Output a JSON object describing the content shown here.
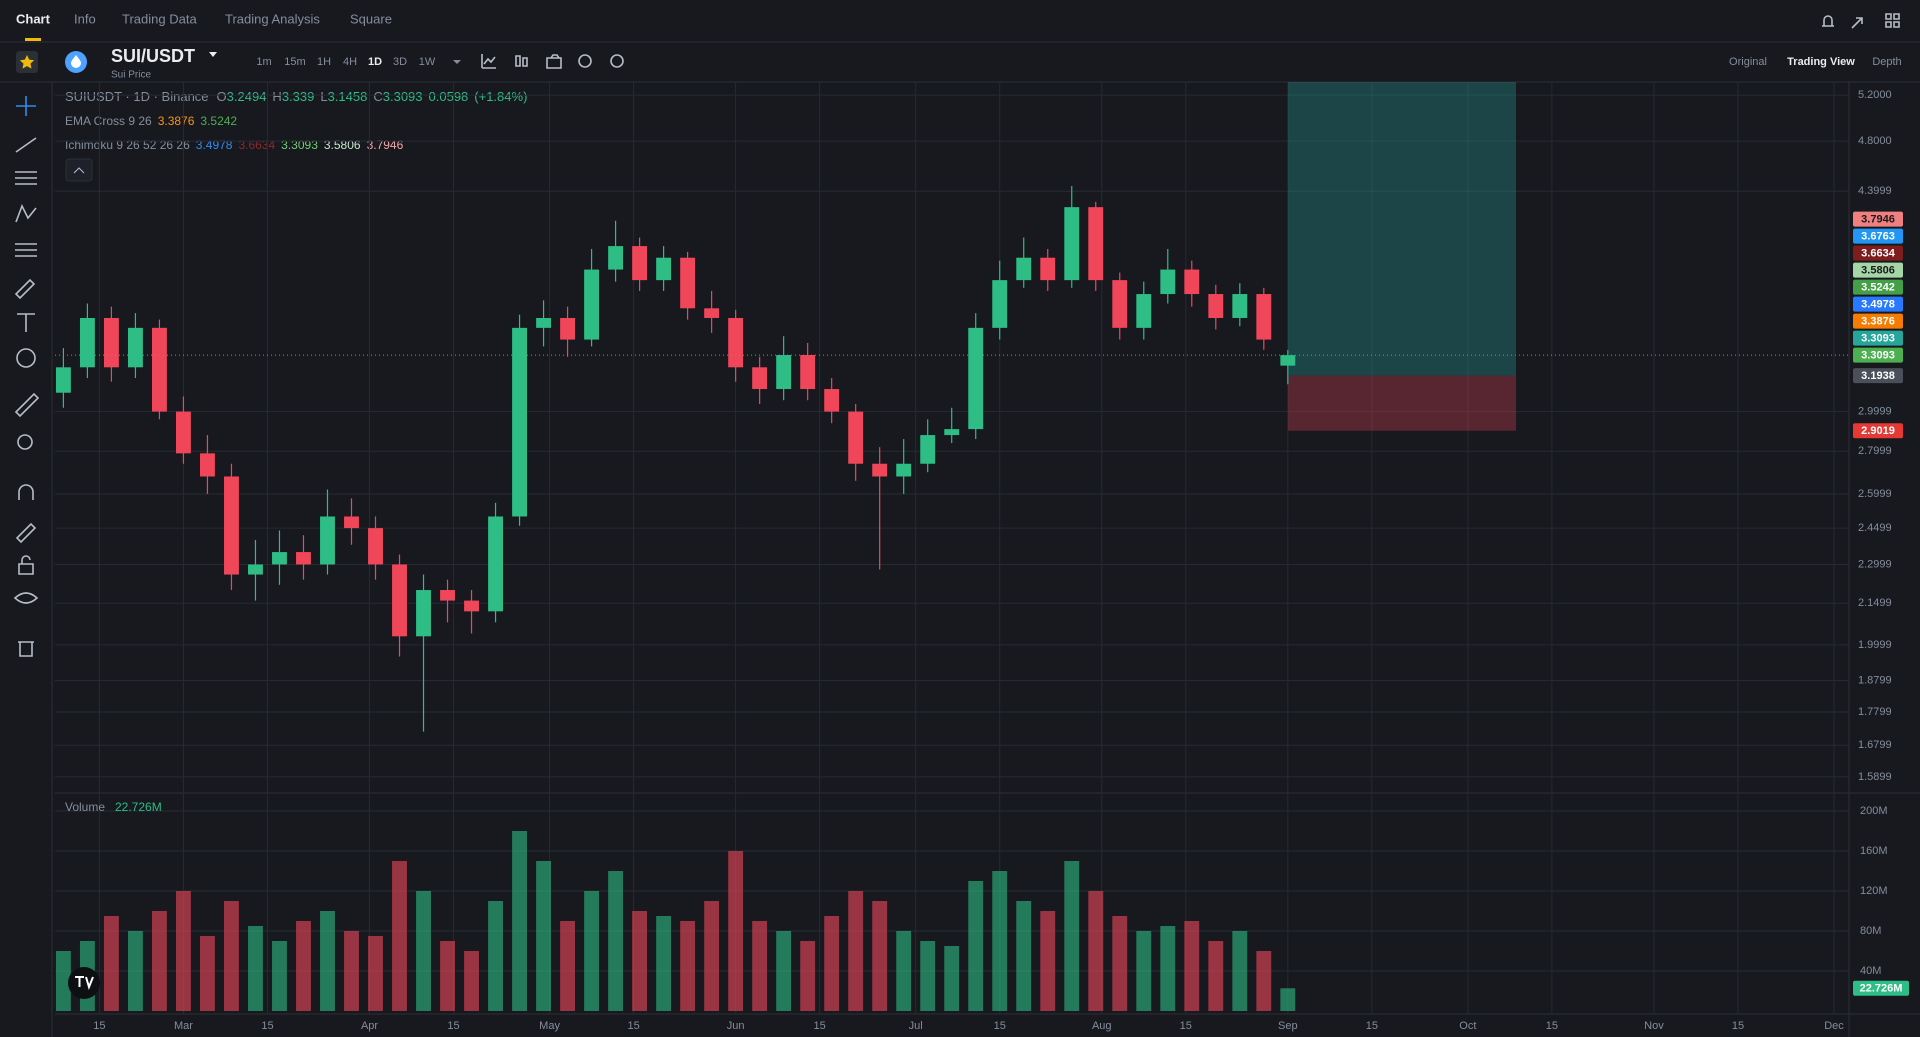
{
  "tabs": [
    "Chart",
    "Info",
    "Trading Data",
    "Trading Analysis",
    "Square"
  ],
  "symbol": "SUI/USDT",
  "symbol_subtitle": "Sui Price",
  "intervals": [
    "1m",
    "15m",
    "1H",
    "4H",
    "1D",
    "3D",
    "1W"
  ],
  "views": [
    "Original",
    "Trading View",
    "Depth"
  ],
  "legend": {
    "title": "SUIUSDT · 1D · Binance",
    "ohlc": [
      {
        "prefix": "O",
        "value": 3.2494
      },
      {
        "prefix": "H",
        "value": 3.339
      },
      {
        "prefix": "L",
        "value": 3.1458
      },
      {
        "prefix": "C",
        "value": 3.3093
      }
    ],
    "change": 0.0598,
    "change_pct": "(+1.84%)",
    "ema": {
      "name": "EMA Cross 9 26",
      "values": [
        {
          "value": 3.3876,
          "color": "#f7931a"
        },
        {
          "value": 3.5242,
          "color": "#4caf50"
        }
      ]
    },
    "ichimoku": {
      "name": "Ichimoku 9 26 52 26 26",
      "values": [
        {
          "value": 3.4978,
          "color": "#2f8cf0"
        },
        {
          "value": 3.6634,
          "color": "#8b2a2a"
        },
        {
          "value": 3.3093,
          "color": "#6fcf6f"
        },
        {
          "value": 3.5806,
          "color": "#c8e6c9"
        },
        {
          "value": 3.7946,
          "color": "#f4a6a6"
        }
      ]
    }
  },
  "chart_data": [
    {
      "type": "candlestick",
      "log_scale": true,
      "grid": true,
      "up_color": "#2dbd85",
      "down_color": "#f0465a",
      "xlim": [
        38.6,
        337.5
      ],
      "ylim": [
        1.546,
        5.32
      ],
      "xticks": [
        {
          "value": 46,
          "label": "15"
        },
        {
          "value": 60,
          "label": "Mar"
        },
        {
          "value": 74,
          "label": "15"
        },
        {
          "value": 91,
          "label": "Apr"
        },
        {
          "value": 105,
          "label": "15"
        },
        {
          "value": 121,
          "label": "May"
        },
        {
          "value": 135,
          "label": "15"
        },
        {
          "value": 152,
          "label": "Jun"
        },
        {
          "value": 166,
          "label": "15"
        },
        {
          "value": 182,
          "label": "Jul"
        },
        {
          "value": 196,
          "label": "15"
        },
        {
          "value": 213,
          "label": "Aug"
        },
        {
          "value": 227,
          "label": "15"
        },
        {
          "value": 244,
          "label": "Sep"
        },
        {
          "value": 258,
          "label": "15"
        },
        {
          "value": 274,
          "label": "Oct"
        },
        {
          "value": 288,
          "label": "15"
        },
        {
          "value": 305,
          "label": "Nov"
        },
        {
          "value": 319,
          "label": "15"
        },
        {
          "value": 335,
          "label": "Dec"
        }
      ],
      "yticks": [
        {
          "value": 5.2,
          "label": "5.2000"
        },
        {
          "value": 4.8,
          "label": "4.8000"
        },
        4.3999,
        2.9999,
        2.7999,
        2.5999,
        2.4499,
        2.2999,
        2.1499,
        1.9999,
        1.8799,
        1.7799,
        1.6799,
        1.5899
      ],
      "x": [
        40,
        44,
        48,
        52,
        56,
        60,
        64,
        68,
        72,
        76,
        80,
        84,
        88,
        92,
        96,
        100,
        104,
        108,
        112,
        116,
        120,
        124,
        128,
        132,
        136,
        140,
        144,
        148,
        152,
        156,
        160,
        164,
        168,
        172,
        176,
        180,
        184,
        188,
        192,
        196,
        200,
        204,
        208,
        212,
        216,
        220,
        224,
        228,
        232,
        236,
        240,
        244
      ],
      "open": [
        3.1,
        3.24,
        3.53,
        3.24,
        3.47,
        3.0,
        2.79,
        2.68,
        2.26,
        2.3,
        2.35,
        2.3,
        2.5,
        2.45,
        2.3,
        2.03,
        2.2,
        2.16,
        2.12,
        2.5,
        3.47,
        3.53,
        3.4,
        3.84,
        4.0,
        3.77,
        3.92,
        3.59,
        3.53,
        3.24,
        3.12,
        3.31,
        3.12,
        3.0,
        2.74,
        2.68,
        2.74,
        2.88,
        2.91,
        3.47,
        3.77,
        3.92,
        3.77,
        4.28,
        3.77,
        3.47,
        3.68,
        3.84,
        3.68,
        3.53,
        3.68,
        3.2494
      ],
      "high": [
        3.35,
        3.62,
        3.6,
        3.56,
        3.52,
        3.08,
        2.88,
        2.74,
        2.4,
        2.44,
        2.42,
        2.62,
        2.58,
        2.5,
        2.34,
        2.26,
        2.24,
        2.2,
        2.56,
        3.55,
        3.64,
        3.6,
        3.98,
        4.18,
        4.06,
        4.0,
        3.96,
        3.7,
        3.58,
        3.3,
        3.42,
        3.38,
        3.18,
        3.04,
        2.82,
        2.86,
        2.96,
        3.02,
        3.56,
        3.9,
        4.06,
        3.98,
        4.44,
        4.32,
        3.82,
        3.76,
        3.98,
        3.9,
        3.74,
        3.75,
        3.72,
        3.339
      ],
      "low": [
        3.02,
        3.18,
        3.16,
        3.18,
        2.96,
        2.74,
        2.6,
        2.2,
        2.16,
        2.22,
        2.24,
        2.26,
        2.38,
        2.24,
        1.96,
        1.72,
        2.08,
        2.04,
        2.08,
        2.46,
        3.36,
        3.3,
        3.36,
        3.76,
        3.7,
        3.7,
        3.52,
        3.44,
        3.16,
        3.04,
        3.06,
        3.06,
        2.94,
        2.66,
        2.28,
        2.6,
        2.7,
        2.84,
        2.86,
        3.4,
        3.72,
        3.7,
        3.72,
        3.7,
        3.4,
        3.4,
        3.62,
        3.6,
        3.46,
        3.48,
        3.34,
        3.1458
      ],
      "close": [
        3.24,
        3.53,
        3.24,
        3.47,
        3.0,
        2.79,
        2.68,
        2.26,
        2.3,
        2.35,
        2.3,
        2.5,
        2.45,
        2.3,
        2.03,
        2.2,
        2.16,
        2.12,
        2.5,
        3.47,
        3.53,
        3.4,
        3.84,
        4.0,
        3.77,
        3.92,
        3.59,
        3.53,
        3.24,
        3.12,
        3.31,
        3.12,
        3.0,
        2.74,
        2.68,
        2.74,
        2.88,
        2.91,
        3.47,
        3.77,
        3.92,
        3.77,
        4.28,
        3.77,
        3.47,
        3.68,
        3.84,
        3.68,
        3.53,
        3.68,
        3.4,
        3.3093
      ],
      "price_labels": [
        {
          "value": 3.7946,
          "color": "#f08080",
          "text_color": "#1a1a1a"
        },
        {
          "value": 3.6763,
          "color": "#2196f3",
          "text_color": "#ffffff"
        },
        {
          "value": 3.6634,
          "color": "#7f1d1d",
          "text_color": "#ffffff"
        },
        {
          "value": 3.5806,
          "color": "#a5d6a7",
          "text_color": "#1a1a1a"
        },
        {
          "value": 3.5242,
          "color": "#43a047",
          "text_color": "#ffffff"
        },
        {
          "value": 3.4978,
          "color": "#2979ff",
          "text_color": "#ffffff"
        },
        {
          "value": 3.3876,
          "color": "#f57c00",
          "text_color": "#ffffff"
        },
        {
          "value": 3.3093,
          "color": "#26a69a",
          "text_color": "#ffffff"
        },
        {
          "value": 3.3093,
          "color": "#4caf50",
          "text_color": "#ffffff"
        },
        {
          "value": 3.1938,
          "color": "#4a4f5a",
          "text_color": "#ffffff"
        },
        {
          "value": 2.9019,
          "color": "#e53935",
          "text_color": "#ffffff"
        }
      ]
    },
    {
      "type": "bar",
      "title": "Volume",
      "last_label": "22.726M",
      "last_color": "#2dbd85",
      "ylim": [
        0,
        218000000
      ],
      "yticks": [
        {
          "value": 200000000,
          "label": "200M"
        },
        {
          "value": 160000000,
          "label": "160M"
        },
        {
          "value": 120000000,
          "label": "120M"
        },
        {
          "value": 80000000,
          "label": "80M"
        },
        {
          "value": 40000000,
          "label": "40M"
        }
      ],
      "values": [
        60000000,
        70000000,
        95000000,
        80000000,
        100000000,
        120000000,
        75000000,
        110000000,
        85000000,
        70000000,
        90000000,
        100000000,
        80000000,
        75000000,
        150000000,
        120000000,
        70000000,
        60000000,
        110000000,
        180000000,
        150000000,
        90000000,
        120000000,
        140000000,
        100000000,
        95000000,
        90000000,
        110000000,
        160000000,
        90000000,
        80000000,
        70000000,
        95000000,
        120000000,
        110000000,
        80000000,
        70000000,
        65000000,
        130000000,
        140000000,
        110000000,
        100000000,
        150000000,
        120000000,
        95000000,
        80000000,
        85000000,
        90000000,
        70000000,
        80000000,
        60000000,
        22726000
      ]
    }
  ]
}
